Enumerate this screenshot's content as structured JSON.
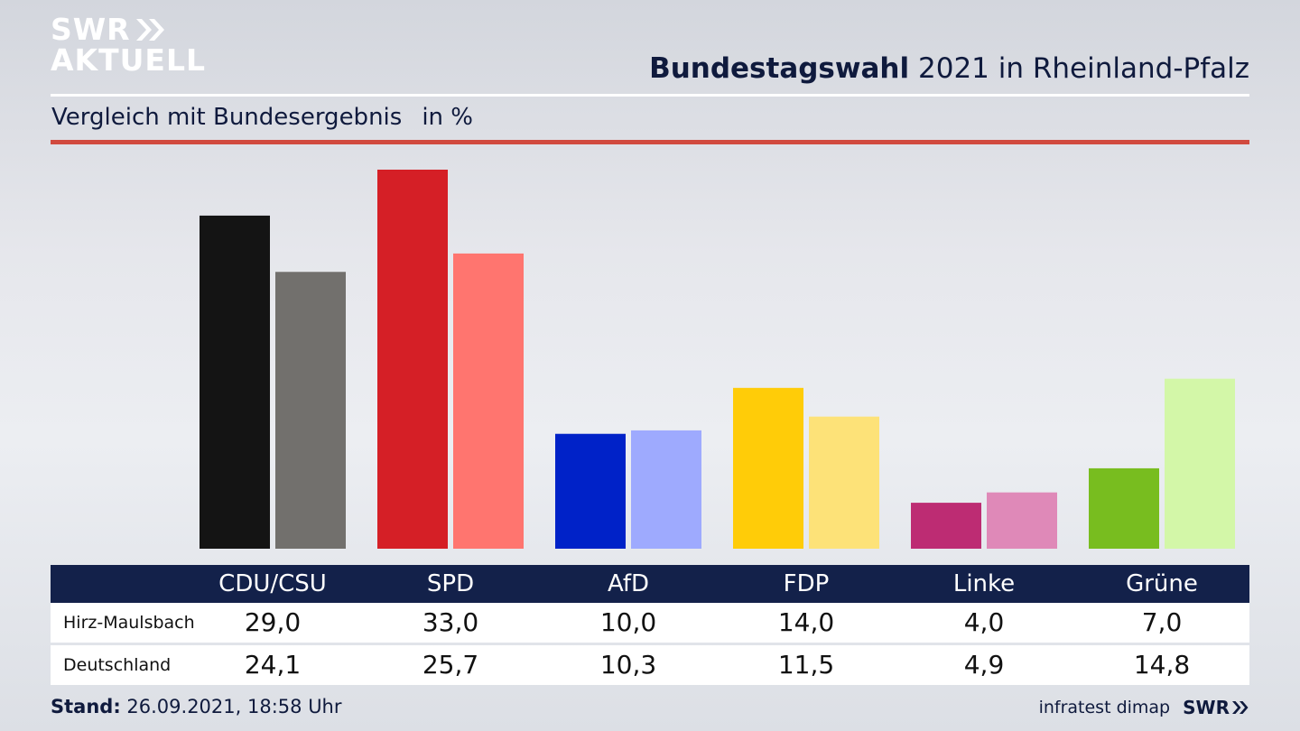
{
  "brand": {
    "line1": "SWR",
    "line2": "AKTUELL"
  },
  "header": {
    "title_bold": "Bundestagswahl",
    "title_rest": "2021 in Rheinland-Pfalz"
  },
  "subtitle": {
    "text": "Vergleich mit Bundesergebnis",
    "unit": "in %"
  },
  "footer": {
    "stand_label": "Stand:",
    "stand_value": "26.09.2021, 18:58 Uhr",
    "source": "infratest dimap",
    "logo": "SWR"
  },
  "table": {
    "rows": [
      {
        "label": "Hirz-Maulsbach",
        "values": [
          "29,0",
          "33,0",
          "10,0",
          "14,0",
          "4,0",
          "7,0"
        ]
      },
      {
        "label": "Deutschland",
        "values": [
          "24,1",
          "25,7",
          "10,3",
          "11,5",
          "4,9",
          "14,8"
        ]
      }
    ]
  },
  "chart_data": {
    "type": "bar",
    "title": "Bundestagswahl 2021 in Rheinland-Pfalz",
    "subtitle": "Vergleich mit Bundesergebnis",
    "unit": "in %",
    "categories": [
      "CDU/CSU",
      "SPD",
      "AfD",
      "FDP",
      "Linke",
      "Grüne"
    ],
    "series": [
      {
        "name": "Hirz-Maulsbach",
        "values": [
          29.0,
          33.0,
          10.0,
          14.0,
          4.0,
          7.0
        ],
        "colors": [
          "#141414",
          "#d51f26",
          "#0022c8",
          "#ffcc08",
          "#bd2c73",
          "#78bd1f"
        ]
      },
      {
        "name": "Deutschland",
        "values": [
          24.1,
          25.7,
          10.3,
          11.5,
          4.9,
          14.8
        ],
        "colors": [
          "#72706d",
          "#ff756f",
          "#9eaafe",
          "#fde278",
          "#df89b8",
          "#d3f7a8"
        ]
      }
    ],
    "ylim": [
      0,
      33
    ],
    "grid": false,
    "legend": "table-below"
  }
}
